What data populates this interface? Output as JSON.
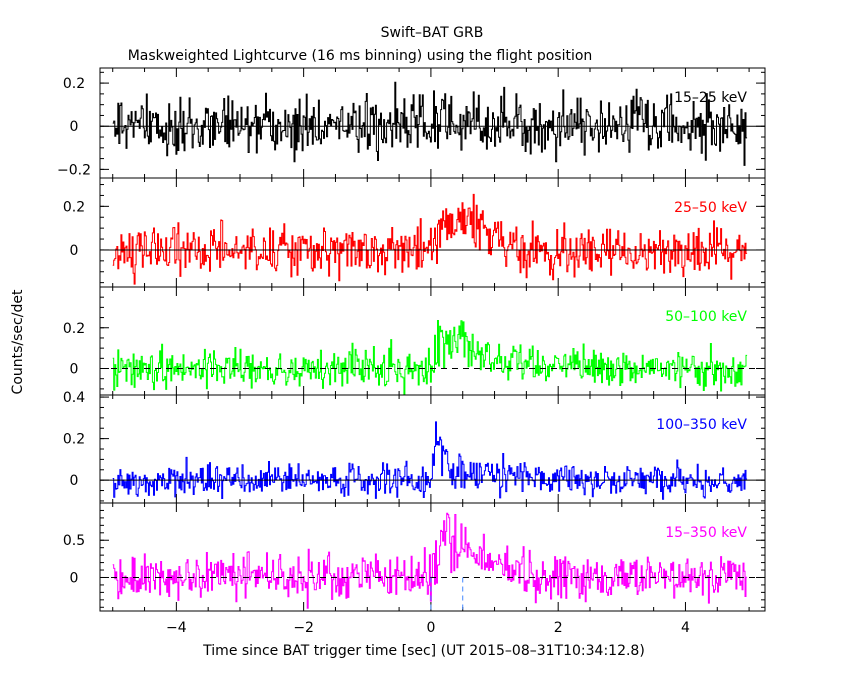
{
  "chart_data": {
    "type": "line",
    "title": "Swift–BAT GRB",
    "subtitle": "Maskweighted Lightcurve (16 ms binning) using the flight position",
    "xlabel": "Time since BAT trigger time [sec] (UT 2015–08–31T10:34:12.8)",
    "ylabel": "Counts/sec/det",
    "xlim": [
      -5.2,
      5.25
    ],
    "x_ticks": [
      -4,
      -2,
      0,
      2,
      4
    ],
    "x_tick_labels": [
      "−4",
      "−2",
      "0",
      "2",
      "4"
    ],
    "x_data_range": [
      -5.0,
      4.95
    ],
    "bin_width": 0.016,
    "markers": [
      {
        "x": 0.0,
        "color": "#4488ff",
        "style": "dashed"
      },
      {
        "x": 0.5,
        "color": "#4488ff",
        "style": "dashed"
      }
    ],
    "panels": [
      {
        "band": "15–25 keV",
        "color": "#000000",
        "ylim": [
          -0.24,
          0.27
        ],
        "y_ticks": [
          -0.2,
          0,
          0.2
        ],
        "y_tick_labels": [
          "−0.2",
          "0",
          "0.2"
        ],
        "baseline_style": "solid",
        "noise_sigma": 0.065,
        "pulse": {
          "start": 0.0,
          "peak_time": 0.1,
          "peak": 0.04,
          "decay": 0.6
        }
      },
      {
        "band": "25–50 keV",
        "color": "#ff0000",
        "ylim": [
          -0.17,
          0.33
        ],
        "y_ticks": [
          0,
          0.2
        ],
        "y_tick_labels": [
          "0",
          "0.2"
        ],
        "baseline_style": "solid",
        "noise_sigma": 0.055,
        "pulse": {
          "start": 0.0,
          "peak_time": 0.35,
          "peak": 0.17,
          "decay": 0.45
        }
      },
      {
        "band": "50–100 keV",
        "color": "#00ff00",
        "ylim": [
          -0.13,
          0.4
        ],
        "y_ticks": [
          0,
          0.2
        ],
        "y_tick_labels": [
          "0",
          "0.2"
        ],
        "baseline_style": "dashed",
        "noise_sigma": 0.05,
        "pulse": {
          "start": 0.0,
          "peak_time": 0.15,
          "peak": 0.2,
          "decay": 0.5
        }
      },
      {
        "band": "100–350 keV",
        "color": "#0000ff",
        "ylim": [
          -0.11,
          0.41
        ],
        "y_ticks": [
          0,
          0.2,
          0.4
        ],
        "y_tick_labels": [
          "0",
          "0.2",
          "0.4"
        ],
        "baseline_style": "solid",
        "noise_sigma": 0.038,
        "pulse": {
          "start": 0.0,
          "peak_time": 0.05,
          "peak": 0.15,
          "decay": 0.5
        }
      },
      {
        "band": "15–350 keV",
        "color": "#ff00ff",
        "ylim": [
          -0.45,
          1.0
        ],
        "y_ticks": [
          0,
          0.5
        ],
        "y_tick_labels": [
          "0",
          "0.5"
        ],
        "baseline_style": "dashed",
        "noise_sigma": 0.15,
        "pulse": {
          "start": 0.0,
          "peak_time": 0.2,
          "peak": 0.6,
          "decay": 0.55
        }
      }
    ]
  }
}
